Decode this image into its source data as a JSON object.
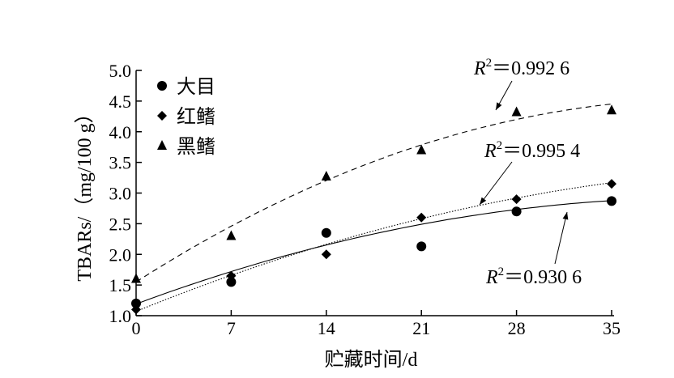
{
  "chart_data": {
    "type": "scatter",
    "xlabel": "贮藏时间/d",
    "ylabel": "TBARs/（mg/100 g）",
    "x": [
      0,
      7,
      14,
      21,
      28,
      35
    ],
    "xlim": [
      0,
      35
    ],
    "ylim": [
      1.0,
      5.0
    ],
    "xticks": [
      "0",
      "7",
      "14",
      "21",
      "28",
      "35"
    ],
    "yticks": [
      "1.0",
      "1.5",
      "2.0",
      "2.5",
      "3.0",
      "3.5",
      "4.0",
      "4.5",
      "5.0"
    ],
    "legend_position": "top-left",
    "series": [
      {
        "name": "大目",
        "marker": "circle",
        "values": [
          1.2,
          1.55,
          2.35,
          2.13,
          2.7,
          2.87
        ],
        "trendline": {
          "style": "solid",
          "fit": [
            1.19,
            0.0825,
            -0.00098
          ],
          "r2": "0.930 6"
        }
      },
      {
        "name": "红鳍",
        "marker": "diamond",
        "values": [
          1.1,
          1.65,
          2.0,
          2.6,
          2.9,
          3.15
        ],
        "trendline": {
          "style": "dotted",
          "fit": [
            1.07,
            0.0901,
            -0.00086
          ],
          "r2": "0.995 4"
        }
      },
      {
        "name": "黑鳍",
        "marker": "triangle",
        "values": [
          1.6,
          2.3,
          3.27,
          3.7,
          4.32,
          4.35
        ],
        "trendline": {
          "style": "dashed",
          "fit": [
            1.55,
            0.1417,
            -0.00168
          ],
          "r2": "0.992 6"
        }
      }
    ],
    "annotations": [
      {
        "prefix": "R",
        "sup": "2",
        "text": "＝0.992 6",
        "series": "黑鳍"
      },
      {
        "prefix": "R",
        "sup": "2",
        "text": "＝0.995 4",
        "series": "红鳍"
      },
      {
        "prefix": "R",
        "sup": "2",
        "text": "＝0.930 6",
        "series": "大目"
      }
    ]
  }
}
